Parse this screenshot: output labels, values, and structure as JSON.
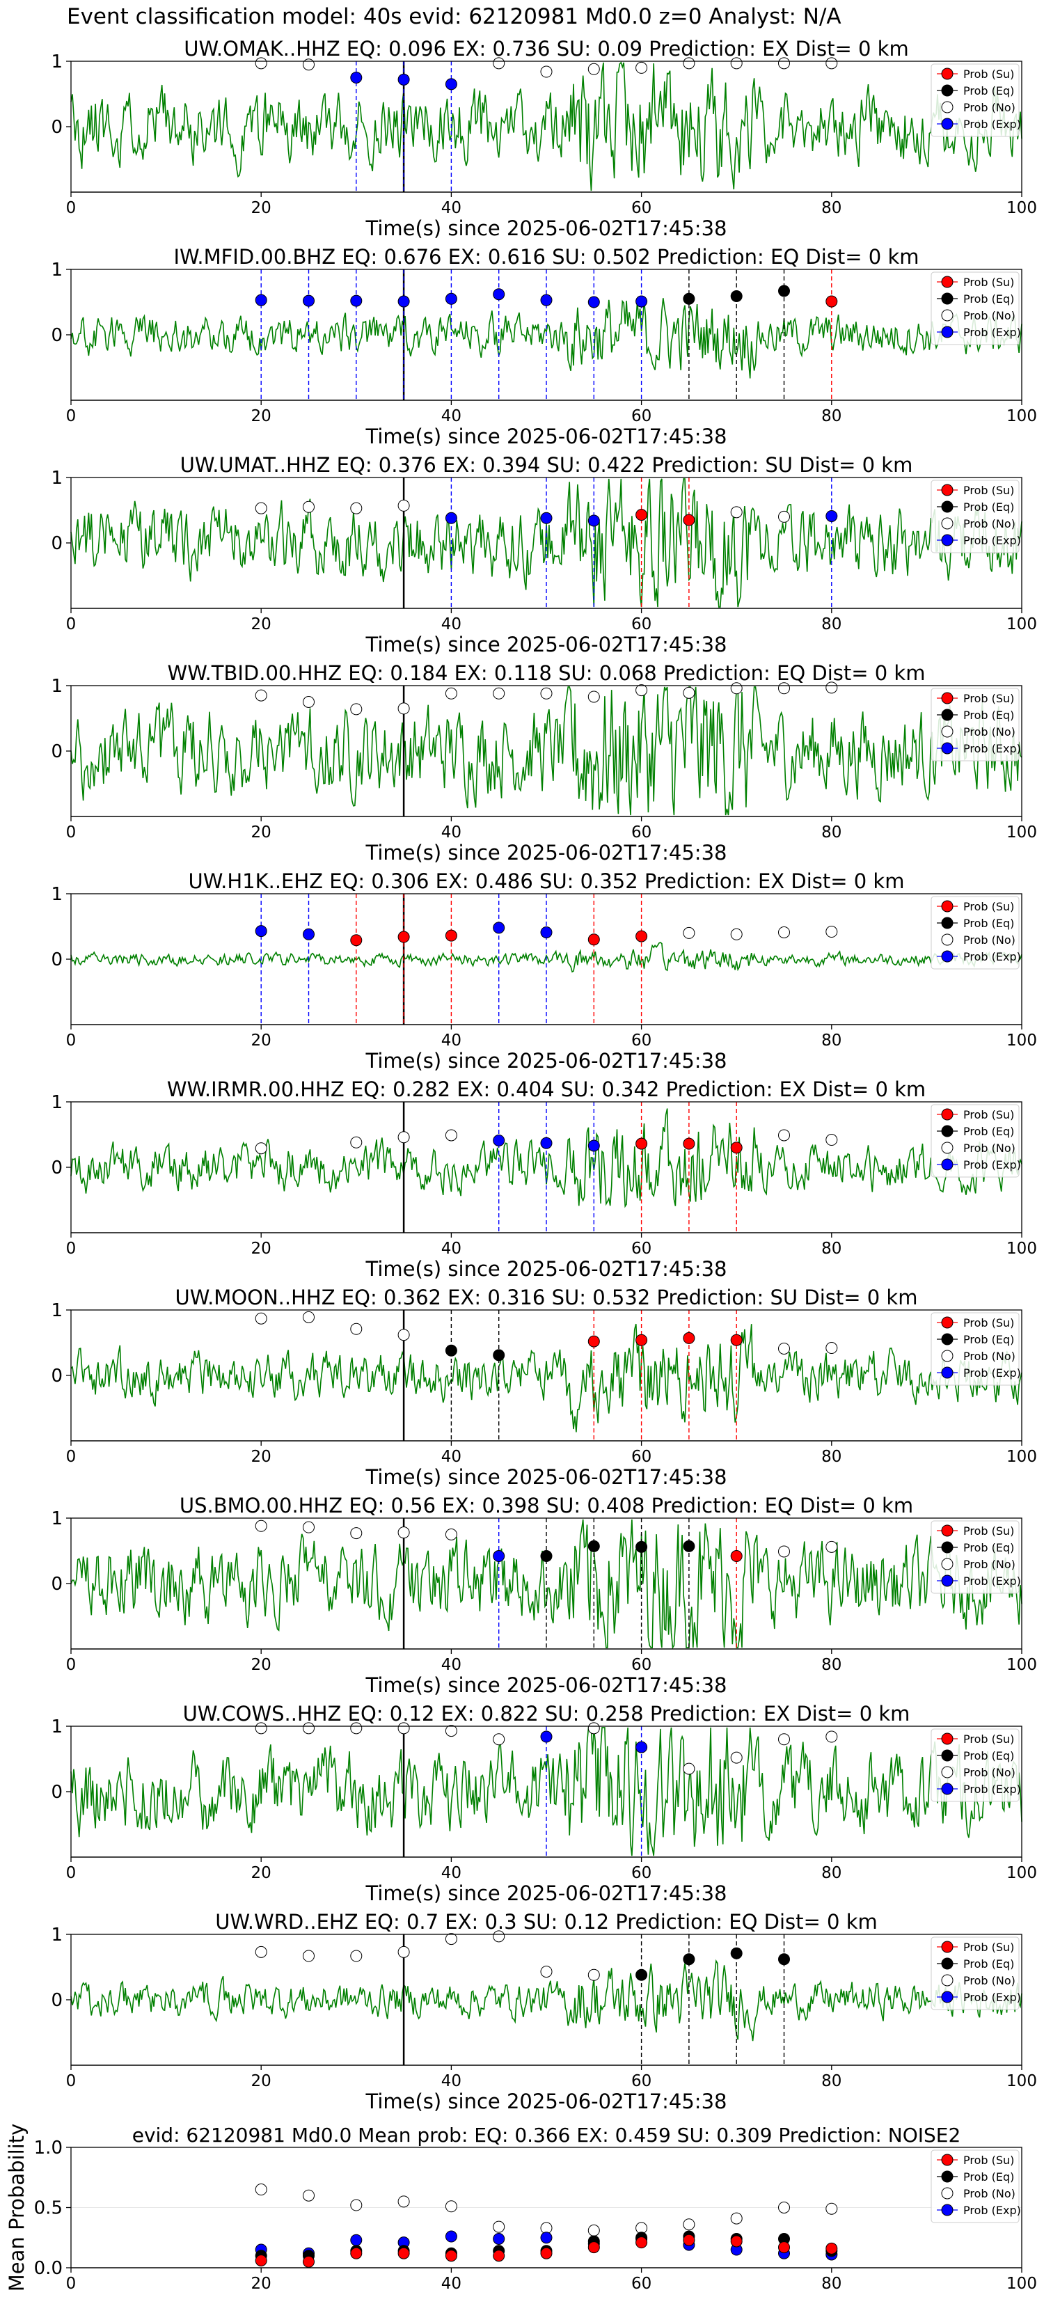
{
  "suptitle": "Event classification model: 40s evid: 62120981 Md0.0 z=0 Analyst: N/A",
  "x_axis": {
    "label": "Time(s) since 2025-06-02T17:45:38",
    "range": [
      0,
      100
    ],
    "ticks": [
      "0",
      "20",
      "40",
      "60",
      "80",
      "100"
    ]
  },
  "legend_labels": [
    "Prob (Su)",
    "Prob (Eq)",
    "Prob (No)",
    "Prob (Exp)"
  ],
  "colors": {
    "waveform": "#008000",
    "su": "#ff0000",
    "eq": "#000000",
    "no": "#ffffff",
    "exp": "#0000ff",
    "marker_line_su": "#ff0000",
    "marker_line_eq": "#000000",
    "marker_line_exp": "#0000ff",
    "origin_line": "#000000"
  },
  "chart_data": {
    "type": "line",
    "window_times": [
      20,
      25,
      30,
      35,
      40,
      45,
      50,
      55,
      60,
      65,
      70,
      75,
      80
    ],
    "origin_time": 35,
    "panels": [
      {
        "title": "UW.OMAK..HHZ   EQ: 0.096  EX: 0.736  SU: 0.09   Prediction: EX    Dist= 0 km",
        "ylim": [
          -1,
          1
        ],
        "yticks": [
          "1",
          "0"
        ],
        "amp": 0.45,
        "seed": 11,
        "points": [
          {
            "x": 20,
            "y": 0.97,
            "cls": "no"
          },
          {
            "x": 25,
            "y": 0.95,
            "cls": "no"
          },
          {
            "x": 30,
            "y": 0.75,
            "cls": "exp"
          },
          {
            "x": 35,
            "y": 0.72,
            "cls": "exp"
          },
          {
            "x": 40,
            "y": 0.65,
            "cls": "exp"
          },
          {
            "x": 45,
            "y": 0.97,
            "cls": "no"
          },
          {
            "x": 50,
            "y": 0.84,
            "cls": "no"
          },
          {
            "x": 55,
            "y": 0.88,
            "cls": "no"
          },
          {
            "x": 60,
            "y": 0.9,
            "cls": "no"
          },
          {
            "x": 65,
            "y": 0.97,
            "cls": "no"
          },
          {
            "x": 70,
            "y": 0.97,
            "cls": "no"
          },
          {
            "x": 75,
            "y": 0.97,
            "cls": "no"
          },
          {
            "x": 80,
            "y": 0.97,
            "cls": "no"
          }
        ]
      },
      {
        "title": "IW.MFID.00.BHZ   EQ: 0.676  EX: 0.616  SU: 0.502   Prediction: EQ    Dist= 0 km",
        "ylim": [
          -1,
          1
        ],
        "yticks": [
          "1",
          "0"
        ],
        "amp": 0.25,
        "seed": 23,
        "points": [
          {
            "x": 20,
            "y": 0.53,
            "cls": "exp"
          },
          {
            "x": 25,
            "y": 0.52,
            "cls": "exp"
          },
          {
            "x": 30,
            "y": 0.52,
            "cls": "exp"
          },
          {
            "x": 35,
            "y": 0.51,
            "cls": "exp"
          },
          {
            "x": 40,
            "y": 0.55,
            "cls": "exp"
          },
          {
            "x": 45,
            "y": 0.62,
            "cls": "exp"
          },
          {
            "x": 50,
            "y": 0.53,
            "cls": "exp"
          },
          {
            "x": 55,
            "y": 0.5,
            "cls": "exp"
          },
          {
            "x": 60,
            "y": 0.51,
            "cls": "exp"
          },
          {
            "x": 65,
            "y": 0.55,
            "cls": "eq"
          },
          {
            "x": 70,
            "y": 0.59,
            "cls": "eq"
          },
          {
            "x": 75,
            "y": 0.67,
            "cls": "eq"
          },
          {
            "x": 80,
            "y": 0.51,
            "cls": "su"
          }
        ]
      },
      {
        "title": "UW.UMAT..HHZ   EQ: 0.376  EX: 0.394  SU: 0.422   Prediction: SU    Dist= 0 km",
        "ylim": [
          -1,
          1
        ],
        "yticks": [
          "1",
          "0"
        ],
        "amp": 0.45,
        "seed": 37,
        "points": [
          {
            "x": 20,
            "y": 0.53,
            "cls": "no"
          },
          {
            "x": 25,
            "y": 0.55,
            "cls": "no"
          },
          {
            "x": 30,
            "y": 0.53,
            "cls": "no"
          },
          {
            "x": 35,
            "y": 0.57,
            "cls": "no"
          },
          {
            "x": 40,
            "y": 0.38,
            "cls": "exp"
          },
          {
            "x": 50,
            "y": 0.38,
            "cls": "exp"
          },
          {
            "x": 55,
            "y": 0.34,
            "cls": "exp"
          },
          {
            "x": 60,
            "y": 0.43,
            "cls": "su"
          },
          {
            "x": 65,
            "y": 0.35,
            "cls": "su"
          },
          {
            "x": 70,
            "y": 0.47,
            "cls": "no"
          },
          {
            "x": 75,
            "y": 0.4,
            "cls": "no"
          },
          {
            "x": 80,
            "y": 0.41,
            "cls": "exp"
          }
        ]
      },
      {
        "title": "WW.TBID.00.HHZ   EQ: 0.184  EX: 0.118  SU: 0.068   Prediction: EQ    Dist= 0 km",
        "ylim": [
          -1,
          1
        ],
        "yticks": [
          "1",
          "0"
        ],
        "amp": 0.55,
        "seed": 41,
        "points": [
          {
            "x": 20,
            "y": 0.85,
            "cls": "no"
          },
          {
            "x": 25,
            "y": 0.75,
            "cls": "no"
          },
          {
            "x": 30,
            "y": 0.64,
            "cls": "no"
          },
          {
            "x": 35,
            "y": 0.65,
            "cls": "no"
          },
          {
            "x": 40,
            "y": 0.88,
            "cls": "no"
          },
          {
            "x": 45,
            "y": 0.88,
            "cls": "no"
          },
          {
            "x": 50,
            "y": 0.88,
            "cls": "no"
          },
          {
            "x": 55,
            "y": 0.83,
            "cls": "no"
          },
          {
            "x": 60,
            "y": 0.93,
            "cls": "no"
          },
          {
            "x": 65,
            "y": 0.89,
            "cls": "no"
          },
          {
            "x": 70,
            "y": 0.96,
            "cls": "no"
          },
          {
            "x": 75,
            "y": 0.96,
            "cls": "no"
          },
          {
            "x": 80,
            "y": 0.97,
            "cls": "no"
          }
        ]
      },
      {
        "title": "UW.H1K..EHZ   EQ: 0.306  EX: 0.486  SU: 0.352   Prediction: EX    Dist= 0 km",
        "ylim": [
          -1,
          1
        ],
        "yticks": [
          "1",
          "0"
        ],
        "amp": 0.08,
        "seed": 53,
        "points": [
          {
            "x": 20,
            "y": 0.43,
            "cls": "exp"
          },
          {
            "x": 25,
            "y": 0.38,
            "cls": "exp"
          },
          {
            "x": 30,
            "y": 0.29,
            "cls": "su"
          },
          {
            "x": 35,
            "y": 0.34,
            "cls": "su"
          },
          {
            "x": 40,
            "y": 0.36,
            "cls": "su"
          },
          {
            "x": 45,
            "y": 0.48,
            "cls": "exp"
          },
          {
            "x": 50,
            "y": 0.41,
            "cls": "exp"
          },
          {
            "x": 55,
            "y": 0.3,
            "cls": "su"
          },
          {
            "x": 60,
            "y": 0.35,
            "cls": "su"
          },
          {
            "x": 65,
            "y": 0.4,
            "cls": "no"
          },
          {
            "x": 70,
            "y": 0.38,
            "cls": "no"
          },
          {
            "x": 75,
            "y": 0.41,
            "cls": "no"
          },
          {
            "x": 80,
            "y": 0.42,
            "cls": "no"
          }
        ]
      },
      {
        "title": "WW.IRMR.00.HHZ   EQ: 0.282  EX: 0.404  SU: 0.342   Prediction: EX    Dist= 0 km",
        "ylim": [
          -1,
          1
        ],
        "yticks": [
          "1",
          "0"
        ],
        "amp": 0.3,
        "seed": 67,
        "points": [
          {
            "x": 20,
            "y": 0.29,
            "cls": "no"
          },
          {
            "x": 30,
            "y": 0.38,
            "cls": "no"
          },
          {
            "x": 35,
            "y": 0.46,
            "cls": "no"
          },
          {
            "x": 40,
            "y": 0.49,
            "cls": "no"
          },
          {
            "x": 45,
            "y": 0.41,
            "cls": "exp"
          },
          {
            "x": 50,
            "y": 0.37,
            "cls": "exp"
          },
          {
            "x": 55,
            "y": 0.33,
            "cls": "exp"
          },
          {
            "x": 60,
            "y": 0.36,
            "cls": "su"
          },
          {
            "x": 65,
            "y": 0.36,
            "cls": "su"
          },
          {
            "x": 70,
            "y": 0.3,
            "cls": "su"
          },
          {
            "x": 75,
            "y": 0.49,
            "cls": "no"
          },
          {
            "x": 80,
            "y": 0.42,
            "cls": "no"
          }
        ]
      },
      {
        "title": "UW.MOON..HHZ   EQ: 0.362  EX: 0.316  SU: 0.532   Prediction: SU    Dist= 0 km",
        "ylim": [
          -1,
          1
        ],
        "yticks": [
          "1",
          "0"
        ],
        "amp": 0.3,
        "seed": 79,
        "points": [
          {
            "x": 20,
            "y": 0.87,
            "cls": "no"
          },
          {
            "x": 25,
            "y": 0.89,
            "cls": "no"
          },
          {
            "x": 30,
            "y": 0.71,
            "cls": "no"
          },
          {
            "x": 35,
            "y": 0.62,
            "cls": "no"
          },
          {
            "x": 40,
            "y": 0.38,
            "cls": "eq"
          },
          {
            "x": 45,
            "y": 0.31,
            "cls": "eq"
          },
          {
            "x": 55,
            "y": 0.52,
            "cls": "su"
          },
          {
            "x": 60,
            "y": 0.54,
            "cls": "su"
          },
          {
            "x": 65,
            "y": 0.57,
            "cls": "su"
          },
          {
            "x": 70,
            "y": 0.54,
            "cls": "su"
          },
          {
            "x": 75,
            "y": 0.41,
            "cls": "no"
          },
          {
            "x": 80,
            "y": 0.42,
            "cls": "no"
          }
        ]
      },
      {
        "title": "US.BMO.00.HHZ   EQ: 0.56  EX: 0.398  SU: 0.408   Prediction: EQ    Dist= 0 km",
        "ylim": [
          -1,
          1
        ],
        "yticks": [
          "1",
          "0"
        ],
        "amp": 0.5,
        "seed": 83,
        "points": [
          {
            "x": 20,
            "y": 0.88,
            "cls": "no"
          },
          {
            "x": 25,
            "y": 0.86,
            "cls": "no"
          },
          {
            "x": 30,
            "y": 0.77,
            "cls": "no"
          },
          {
            "x": 35,
            "y": 0.78,
            "cls": "no"
          },
          {
            "x": 40,
            "y": 0.75,
            "cls": "no"
          },
          {
            "x": 45,
            "y": 0.42,
            "cls": "exp"
          },
          {
            "x": 50,
            "y": 0.42,
            "cls": "eq"
          },
          {
            "x": 55,
            "y": 0.57,
            "cls": "eq"
          },
          {
            "x": 60,
            "y": 0.56,
            "cls": "eq"
          },
          {
            "x": 65,
            "y": 0.57,
            "cls": "eq"
          },
          {
            "x": 70,
            "y": 0.42,
            "cls": "su"
          },
          {
            "x": 75,
            "y": 0.49,
            "cls": "no"
          },
          {
            "x": 80,
            "y": 0.56,
            "cls": "no"
          }
        ]
      },
      {
        "title": "UW.COWS..HHZ   EQ: 0.12  EX: 0.822  SU: 0.258   Prediction: EX    Dist= 0 km",
        "ylim": [
          -1,
          1
        ],
        "yticks": [
          "1",
          "0"
        ],
        "amp": 0.5,
        "seed": 97,
        "points": [
          {
            "x": 20,
            "y": 0.97,
            "cls": "no"
          },
          {
            "x": 25,
            "y": 0.97,
            "cls": "no"
          },
          {
            "x": 30,
            "y": 0.97,
            "cls": "no"
          },
          {
            "x": 35,
            "y": 0.97,
            "cls": "no"
          },
          {
            "x": 40,
            "y": 0.93,
            "cls": "no"
          },
          {
            "x": 45,
            "y": 0.8,
            "cls": "no"
          },
          {
            "x": 50,
            "y": 0.84,
            "cls": "exp"
          },
          {
            "x": 55,
            "y": 0.97,
            "cls": "no"
          },
          {
            "x": 60,
            "y": 0.68,
            "cls": "exp"
          },
          {
            "x": 65,
            "y": 0.35,
            "cls": "no"
          },
          {
            "x": 70,
            "y": 0.52,
            "cls": "no"
          },
          {
            "x": 75,
            "y": 0.8,
            "cls": "no"
          },
          {
            "x": 80,
            "y": 0.84,
            "cls": "no"
          }
        ]
      },
      {
        "title": "UW.WRD..EHZ   EQ: 0.7  EX: 0.3  SU: 0.12   Prediction: EQ    Dist= 0 km",
        "ylim": [
          -1,
          1
        ],
        "yticks": [
          "1",
          "0"
        ],
        "amp": 0.22,
        "seed": 101,
        "points": [
          {
            "x": 20,
            "y": 0.73,
            "cls": "no"
          },
          {
            "x": 25,
            "y": 0.67,
            "cls": "no"
          },
          {
            "x": 30,
            "y": 0.67,
            "cls": "no"
          },
          {
            "x": 35,
            "y": 0.73,
            "cls": "no"
          },
          {
            "x": 40,
            "y": 0.93,
            "cls": "no"
          },
          {
            "x": 45,
            "y": 0.97,
            "cls": "no"
          },
          {
            "x": 50,
            "y": 0.43,
            "cls": "no"
          },
          {
            "x": 55,
            "y": 0.38,
            "cls": "no"
          },
          {
            "x": 60,
            "y": 0.38,
            "cls": "eq"
          },
          {
            "x": 65,
            "y": 0.62,
            "cls": "eq"
          },
          {
            "x": 70,
            "y": 0.71,
            "cls": "eq"
          },
          {
            "x": 75,
            "y": 0.62,
            "cls": "eq"
          }
        ]
      }
    ],
    "summary": {
      "title": "evid: 62120981  Md0.0   Mean prob:   EQ: 0.366  EX: 0.459  SU: 0.309   Prediction: NOISE2",
      "ylabel": "Mean Probability",
      "ylim": [
        0,
        1
      ],
      "yticks": [
        "0.0",
        "0.5",
        "1.0"
      ],
      "x": [
        20,
        25,
        30,
        35,
        40,
        45,
        50,
        55,
        60,
        65,
        70,
        75,
        80
      ],
      "series": [
        {
          "cls": "no",
          "values": [
            0.65,
            0.6,
            0.52,
            0.55,
            0.51,
            0.34,
            0.33,
            0.31,
            0.33,
            0.36,
            0.41,
            0.5,
            0.49
          ]
        },
        {
          "cls": "exp",
          "values": [
            0.15,
            0.12,
            0.23,
            0.21,
            0.26,
            0.24,
            0.25,
            0.2,
            0.24,
            0.19,
            0.15,
            0.12,
            0.11
          ]
        },
        {
          "cls": "eq",
          "values": [
            0.1,
            0.1,
            0.14,
            0.14,
            0.12,
            0.14,
            0.14,
            0.22,
            0.25,
            0.26,
            0.24,
            0.24,
            0.14
          ]
        },
        {
          "cls": "su",
          "values": [
            0.06,
            0.05,
            0.12,
            0.12,
            0.1,
            0.1,
            0.12,
            0.17,
            0.21,
            0.23,
            0.22,
            0.17,
            0.16
          ]
        }
      ]
    }
  }
}
